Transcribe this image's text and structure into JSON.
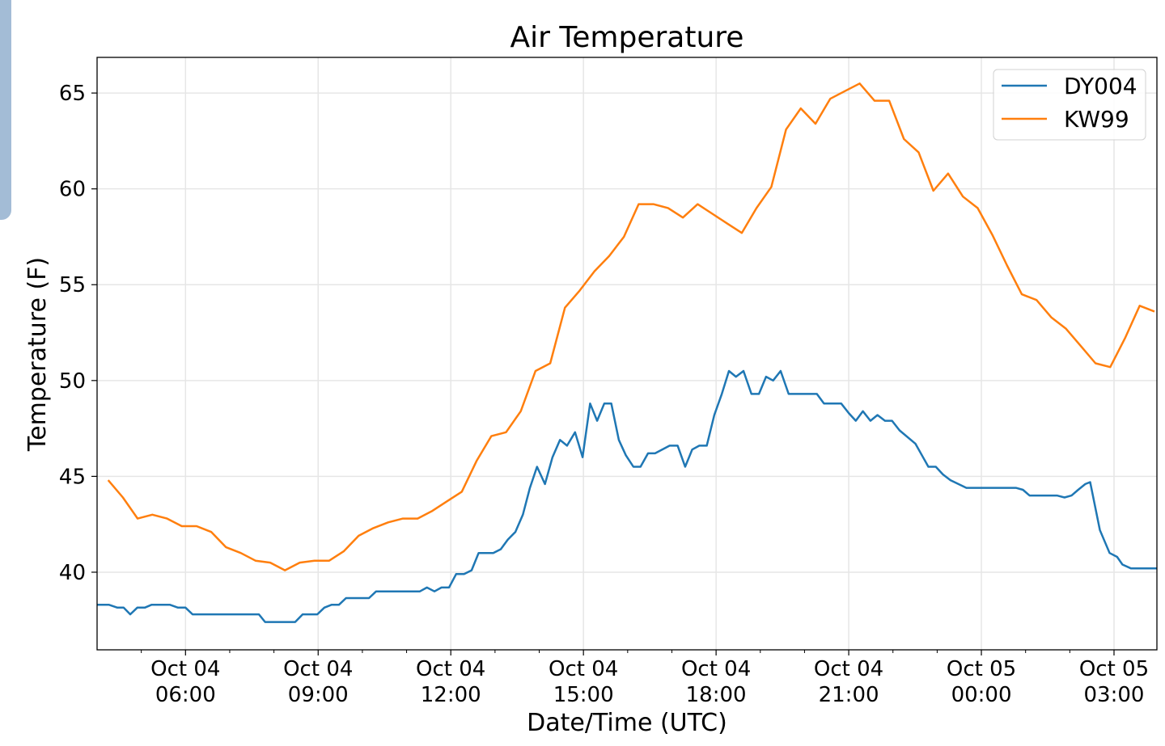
{
  "chart_data": {
    "type": "line",
    "title": "Air Temperature",
    "xlabel": "Date/Time (UTC)",
    "ylabel": "Temperature (F)",
    "x_units": "hours since Oct 04 00:00 UTC",
    "xlim": [
      4.0,
      27.97
    ],
    "ylim": [
      35.95,
      66.86
    ],
    "grid": true,
    "legend_position": "top-right",
    "x_ticks": [
      {
        "value": 6,
        "label": [
          "Oct 04",
          "06:00"
        ]
      },
      {
        "value": 9,
        "label": [
          "Oct 04",
          "09:00"
        ]
      },
      {
        "value": 12,
        "label": [
          "Oct 04",
          "12:00"
        ]
      },
      {
        "value": 15,
        "label": [
          "Oct 04",
          "15:00"
        ]
      },
      {
        "value": 18,
        "label": [
          "Oct 04",
          "18:00"
        ]
      },
      {
        "value": 21,
        "label": [
          "Oct 04",
          "21:00"
        ]
      },
      {
        "value": 24,
        "label": [
          "Oct 05",
          "00:00"
        ]
      },
      {
        "value": 27,
        "label": [
          "Oct 05",
          "03:00"
        ]
      }
    ],
    "x_minor_ticks": [
      5,
      7,
      8,
      10,
      11,
      13,
      14,
      16,
      17,
      19,
      20,
      22,
      23,
      25,
      26
    ],
    "y_ticks": [
      40,
      45,
      50,
      55,
      60,
      65
    ],
    "series": [
      {
        "name": "DY004",
        "color": "#1f77b4",
        "x": [
          4.0,
          4.27,
          4.46,
          4.6,
          4.75,
          4.91,
          5.08,
          5.23,
          5.65,
          5.83,
          6.0,
          6.16,
          7.66,
          7.8,
          8.48,
          8.65,
          8.98,
          9.14,
          9.3,
          9.47,
          9.63,
          10.15,
          10.31,
          11.3,
          11.46,
          11.63,
          11.79,
          11.96,
          12.12,
          12.3,
          12.47,
          12.63,
          12.96,
          13.13,
          13.29,
          13.46,
          13.63,
          13.79,
          13.95,
          14.13,
          14.3,
          14.47,
          14.63,
          14.81,
          14.98,
          15.15,
          15.31,
          15.47,
          15.63,
          15.8,
          15.96,
          16.13,
          16.29,
          16.46,
          16.62,
          16.95,
          17.13,
          17.3,
          17.46,
          17.62,
          17.79,
          17.96,
          18.13,
          18.29,
          18.45,
          18.62,
          18.8,
          18.97,
          19.13,
          19.29,
          19.46,
          19.64,
          20.28,
          20.44,
          20.83,
          21.0,
          21.16,
          21.32,
          21.49,
          21.65,
          21.82,
          21.98,
          22.15,
          22.51,
          22.8,
          22.97,
          23.13,
          23.3,
          23.66,
          24.78,
          24.94,
          25.09,
          25.71,
          25.88,
          26.04,
          26.19,
          26.35,
          26.46,
          26.68,
          26.9,
          27.07,
          27.19,
          27.38,
          27.96
        ],
        "values": [
          38.3,
          38.3,
          38.15,
          38.15,
          37.8,
          38.15,
          38.15,
          38.3,
          38.3,
          38.15,
          38.15,
          37.8,
          37.8,
          37.4,
          37.4,
          37.8,
          37.8,
          38.15,
          38.3,
          38.3,
          38.65,
          38.65,
          39.0,
          39.0,
          39.2,
          39.0,
          39.2,
          39.2,
          39.9,
          39.9,
          40.1,
          41.0,
          41.0,
          41.2,
          41.7,
          42.1,
          43.0,
          44.4,
          45.5,
          44.6,
          46.0,
          46.9,
          46.6,
          47.3,
          46.0,
          48.8,
          47.9,
          48.8,
          48.8,
          46.9,
          46.1,
          45.5,
          45.5,
          46.2,
          46.2,
          46.6,
          46.6,
          45.5,
          46.4,
          46.6,
          46.6,
          48.2,
          49.3,
          50.5,
          50.2,
          50.5,
          49.3,
          49.3,
          50.2,
          50.0,
          50.5,
          49.3,
          49.3,
          48.8,
          48.8,
          48.3,
          47.9,
          48.4,
          47.9,
          48.2,
          47.9,
          47.9,
          47.4,
          46.7,
          45.5,
          45.5,
          45.1,
          44.8,
          44.4,
          44.4,
          44.3,
          44.0,
          44.0,
          43.9,
          44.0,
          44.3,
          44.6,
          44.7,
          42.2,
          41.0,
          40.8,
          40.4,
          40.2,
          40.2
        ]
      },
      {
        "name": "KW99",
        "color": "#ff7f0e",
        "x_start": 4.25,
        "x_step_hours": 0.3333,
        "values": [
          44.8,
          43.9,
          42.8,
          43.0,
          42.8,
          42.4,
          42.4,
          42.1,
          41.3,
          41.0,
          40.6,
          40.5,
          40.1,
          40.5,
          40.6,
          40.6,
          41.1,
          41.9,
          42.3,
          42.6,
          42.8,
          42.8,
          43.2,
          43.7,
          44.2,
          45.8,
          47.1,
          47.3,
          48.4,
          50.5,
          50.9,
          53.8,
          54.7,
          55.7,
          56.5,
          57.5,
          59.2,
          59.2,
          59.0,
          58.5,
          59.2,
          58.7,
          58.2,
          57.7,
          59.0,
          60.1,
          63.1,
          64.2,
          63.4,
          64.7,
          65.1,
          65.5,
          64.6,
          64.6,
          62.6,
          61.9,
          59.9,
          60.8,
          59.6,
          59.0,
          57.6,
          56.0,
          54.5,
          54.2,
          53.3,
          52.7,
          51.8,
          50.9,
          50.7,
          52.2,
          53.9,
          53.6
        ]
      }
    ]
  }
}
